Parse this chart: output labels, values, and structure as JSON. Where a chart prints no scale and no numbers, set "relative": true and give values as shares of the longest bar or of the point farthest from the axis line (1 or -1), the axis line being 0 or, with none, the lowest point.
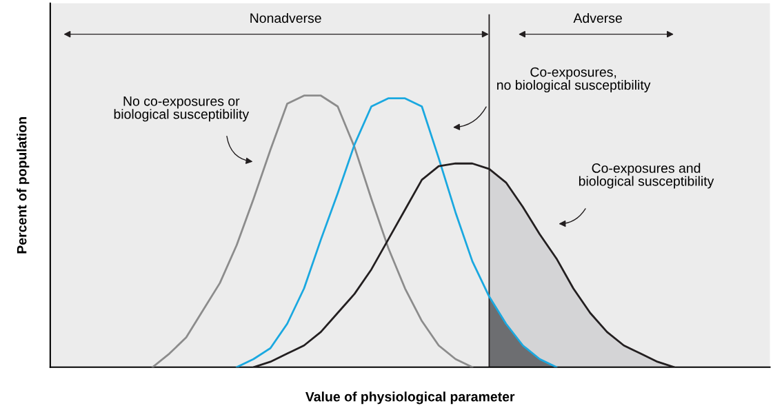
{
  "chart_data": {
    "type": "line",
    "relative": true,
    "xlabel": "Value of physiological parameter",
    "ylabel": "Percent of population",
    "categories": [
      null,
      null,
      null,
      null,
      null,
      null,
      null,
      null,
      null,
      null,
      null,
      null,
      null,
      null,
      null,
      null,
      null,
      null,
      null,
      null,
      null,
      null,
      null,
      null,
      null,
      null,
      null,
      null,
      null,
      null,
      null,
      null,
      null,
      null,
      null,
      null,
      null,
      null,
      null,
      null,
      null
    ],
    "series": [
      {
        "type": "area",
        "color": "#d4d4d6",
        "values": [
          null,
          null,
          null,
          null,
          null,
          null,
          null,
          null,
          null,
          null,
          null,
          null,
          null,
          null,
          null,
          null,
          null,
          null,
          null,
          null,
          null,
          null,
          null,
          null,
          null,
          0.73,
          0.68,
          0.59,
          0.49,
          0.4,
          0.29,
          0.2,
          0.13,
          0.08,
          0.05,
          0.02,
          0,
          null,
          null,
          null,
          null
        ]
      },
      {
        "type": "area",
        "color": "#6d6e71",
        "values": [
          null,
          null,
          null,
          null,
          null,
          null,
          null,
          null,
          null,
          null,
          null,
          null,
          null,
          null,
          null,
          null,
          null,
          null,
          null,
          null,
          null,
          null,
          null,
          null,
          null,
          0.26,
          0.16,
          0.08,
          0.03,
          0,
          null,
          null,
          null,
          null,
          null,
          null,
          null,
          null,
          null,
          null,
          null
        ]
      },
      {
        "color": "#8c8c8c",
        "values": [
          null,
          null,
          null,
          null,
          null,
          0,
          0.05,
          0.11,
          0.21,
          0.31,
          0.45,
          0.62,
          0.8,
          0.97,
          1.0,
          1.0,
          0.96,
          0.81,
          0.62,
          0.44,
          0.29,
          0.17,
          0.08,
          0.03,
          0,
          null,
          null,
          null,
          null,
          null,
          null,
          null,
          null,
          null,
          null,
          null,
          null,
          null,
          null,
          null,
          null
        ]
      },
      {
        "color": "#1aa8e0",
        "values": [
          null,
          null,
          null,
          null,
          null,
          null,
          null,
          null,
          null,
          null,
          0,
          0.03,
          0.07,
          0.16,
          0.29,
          0.47,
          0.64,
          0.82,
          0.96,
          0.99,
          0.99,
          0.96,
          0.77,
          0.57,
          0.39,
          0.26,
          0.16,
          0.08,
          0.03,
          0,
          null,
          null,
          null,
          null,
          null,
          null,
          null,
          null,
          null,
          null,
          null
        ]
      },
      {
        "color": "#231f20",
        "values": [
          null,
          null,
          null,
          null,
          null,
          null,
          null,
          null,
          null,
          null,
          null,
          0,
          0.02,
          0.05,
          0.08,
          0.13,
          0.2,
          0.27,
          0.36,
          0.47,
          0.58,
          0.69,
          0.74,
          0.75,
          0.75,
          0.73,
          0.68,
          0.59,
          0.49,
          0.4,
          0.29,
          0.2,
          0.13,
          0.08,
          0.05,
          0.02,
          0,
          null,
          null,
          null,
          null
        ]
      }
    ],
    "annotations": [
      "Nonadverse",
      "Adverse",
      "No co-exposures or\nbiological susceptibility",
      "Co-exposures,\nno biological susceptibility",
      "Co-exposures and\nbiological susceptibility"
    ],
    "grid": false
  }
}
